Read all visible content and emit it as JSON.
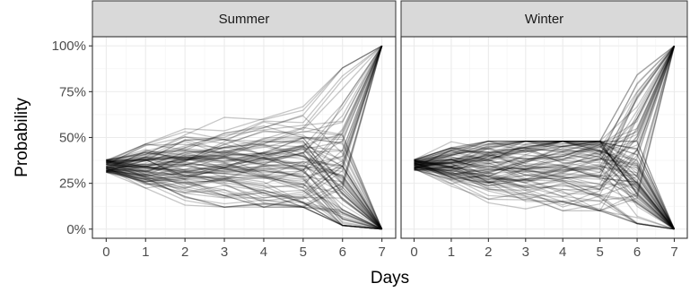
{
  "chart_data": {
    "type": "line",
    "facet_labels": [
      "Summer",
      "Winter"
    ],
    "xlabel": "Days",
    "ylabel": "Probability",
    "x_ticks": [
      0,
      1,
      2,
      3,
      4,
      5,
      6,
      7
    ],
    "y_ticks": [
      0,
      0.25,
      0.5,
      0.75,
      1.0
    ],
    "y_tick_labels": [
      "0%",
      "25%",
      "50%",
      "75%",
      "100%"
    ],
    "xlim": [
      -0.35,
      7.35
    ],
    "ylim": [
      -0.05,
      1.05
    ],
    "grid": true,
    "line_color": "#000000",
    "line_opacity": 0.22,
    "panel_border_color": "#333333",
    "strip_fill": "#d9d9d9",
    "series_count_per_panel": 100,
    "summer": {
      "start_range": [
        0.31,
        0.38
      ],
      "days_1_to_5_range": [
        0.12,
        0.67
      ],
      "day_6_range": [
        0.02,
        0.88
      ],
      "day_7_values": [
        0,
        1
      ]
    },
    "winter": {
      "start_range": [
        0.32,
        0.38
      ],
      "days_1_to_5_range": [
        0.1,
        0.48
      ],
      "day_6_range": [
        0.03,
        0.86
      ],
      "day_7_values": [
        0,
        1
      ]
    }
  }
}
